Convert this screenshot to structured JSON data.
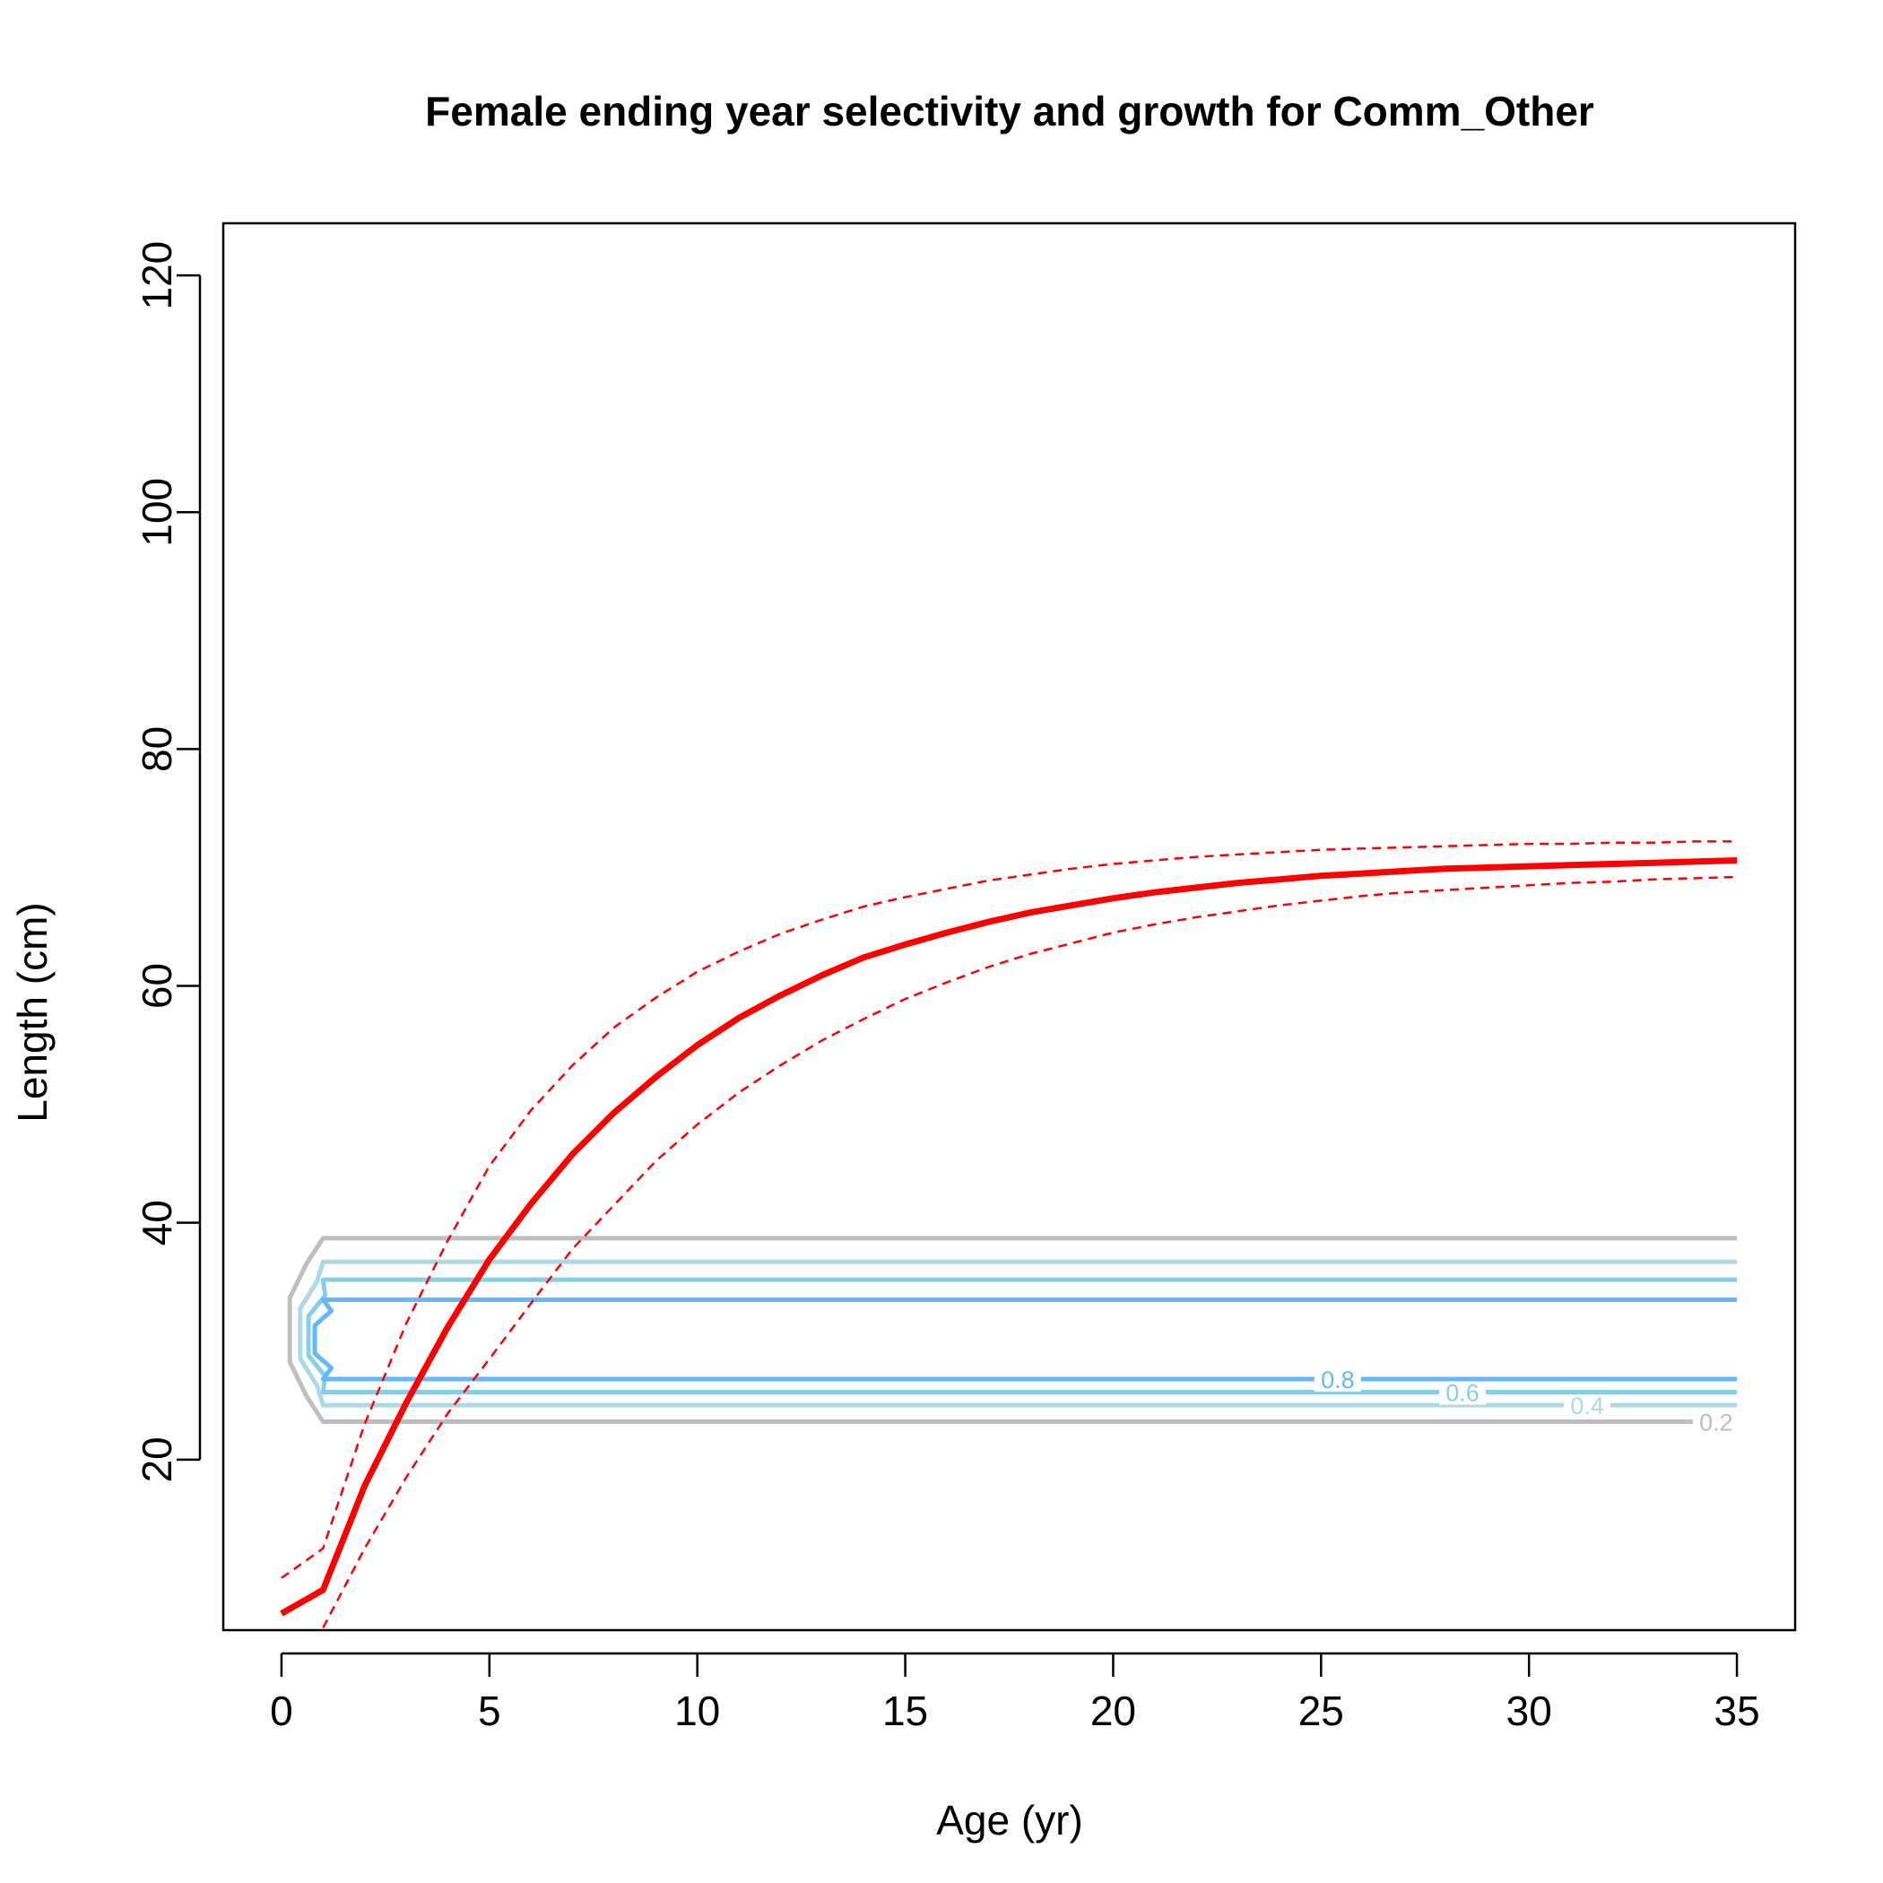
{
  "chart_data": {
    "type": "line",
    "title": "Female ending year selectivity and growth for Comm_Other",
    "xlabel": "Age (yr)",
    "ylabel": "Length (cm)",
    "xlim": [
      -1.4,
      36.4
    ],
    "ylim": [
      5.6,
      124.4
    ],
    "xticks": [
      0,
      5,
      10,
      15,
      20,
      25,
      30,
      35
    ],
    "yticks": [
      20,
      40,
      60,
      80,
      100,
      120
    ],
    "grid": false,
    "legend": "none",
    "growth": {
      "color": "#ff0000",
      "mean": {
        "x": [
          0,
          1,
          2,
          3,
          4,
          5,
          6,
          7,
          8,
          9,
          10,
          11,
          12,
          13,
          14,
          15,
          16,
          17,
          18,
          19,
          20,
          21,
          22,
          23,
          24,
          25,
          26,
          27,
          28,
          29,
          30,
          31,
          32,
          33,
          34,
          35
        ],
        "y": [
          7.0,
          9.0,
          17.8,
          24.8,
          31.2,
          36.9,
          41.6,
          45.8,
          49.3,
          52.3,
          55.0,
          57.3,
          59.2,
          60.9,
          62.4,
          63.5,
          64.5,
          65.4,
          66.2,
          66.8,
          67.4,
          67.9,
          68.3,
          68.7,
          69.0,
          69.3,
          69.5,
          69.7,
          69.9,
          70.0,
          70.1,
          70.2,
          70.3,
          70.4,
          70.5,
          70.6
        ]
      },
      "upper": {
        "x": [
          0,
          1,
          2,
          3,
          4,
          5,
          6,
          7,
          8,
          9,
          10,
          11,
          12,
          13,
          14,
          15,
          16,
          17,
          18,
          19,
          20,
          21,
          22,
          23,
          24,
          25,
          26,
          27,
          28,
          29,
          30,
          31,
          32,
          33,
          34,
          35
        ],
        "y": [
          10.0,
          12.5,
          23.0,
          31.5,
          38.5,
          44.8,
          49.5,
          53.3,
          56.5,
          59.0,
          61.2,
          62.9,
          64.4,
          65.6,
          66.7,
          67.5,
          68.2,
          68.9,
          69.4,
          69.9,
          70.3,
          70.6,
          70.9,
          71.1,
          71.3,
          71.5,
          71.6,
          71.7,
          71.8,
          71.9,
          72.0,
          72.0,
          72.1,
          72.1,
          72.2,
          72.2
        ]
      },
      "lower": {
        "x": [
          1,
          2,
          3,
          4,
          5,
          6,
          7,
          8,
          9,
          10,
          11,
          12,
          13,
          14,
          15,
          16,
          17,
          18,
          19,
          20,
          21,
          22,
          23,
          24,
          25,
          26,
          27,
          28,
          29,
          30,
          31,
          32,
          33,
          34,
          35
        ],
        "y": [
          5.8,
          12.5,
          18.5,
          23.9,
          28.5,
          33.2,
          37.8,
          41.5,
          45.2,
          48.3,
          51.0,
          53.3,
          55.4,
          57.2,
          58.9,
          60.3,
          61.6,
          62.7,
          63.6,
          64.5,
          65.2,
          65.8,
          66.3,
          66.8,
          67.2,
          67.6,
          67.9,
          68.1,
          68.3,
          68.5,
          68.7,
          68.8,
          69.0,
          69.1,
          69.2
        ]
      }
    },
    "selectivity_contours": [
      {
        "level": 0.2,
        "label": "0.2",
        "color": "#bebebe",
        "y_low": 23.2,
        "y_high": 38.7,
        "x_left": 0.2,
        "label_x": 34.5
      },
      {
        "level": 0.4,
        "label": "0.4",
        "color": "#add8e6",
        "y_low": 24.6,
        "y_high": 36.7,
        "x_left": 0.45,
        "label_x": 31.4
      },
      {
        "level": 0.6,
        "label": "0.6",
        "color": "#87ceeb",
        "y_low": 25.7,
        "y_high": 35.2,
        "x_left": 0.65,
        "label_x": 28.4
      },
      {
        "level": 0.8,
        "label": "0.8",
        "color": "#63b8ff",
        "y_low": 26.8,
        "y_high": 33.5,
        "x_left": 0.8,
        "label_x": 25.4
      }
    ]
  }
}
